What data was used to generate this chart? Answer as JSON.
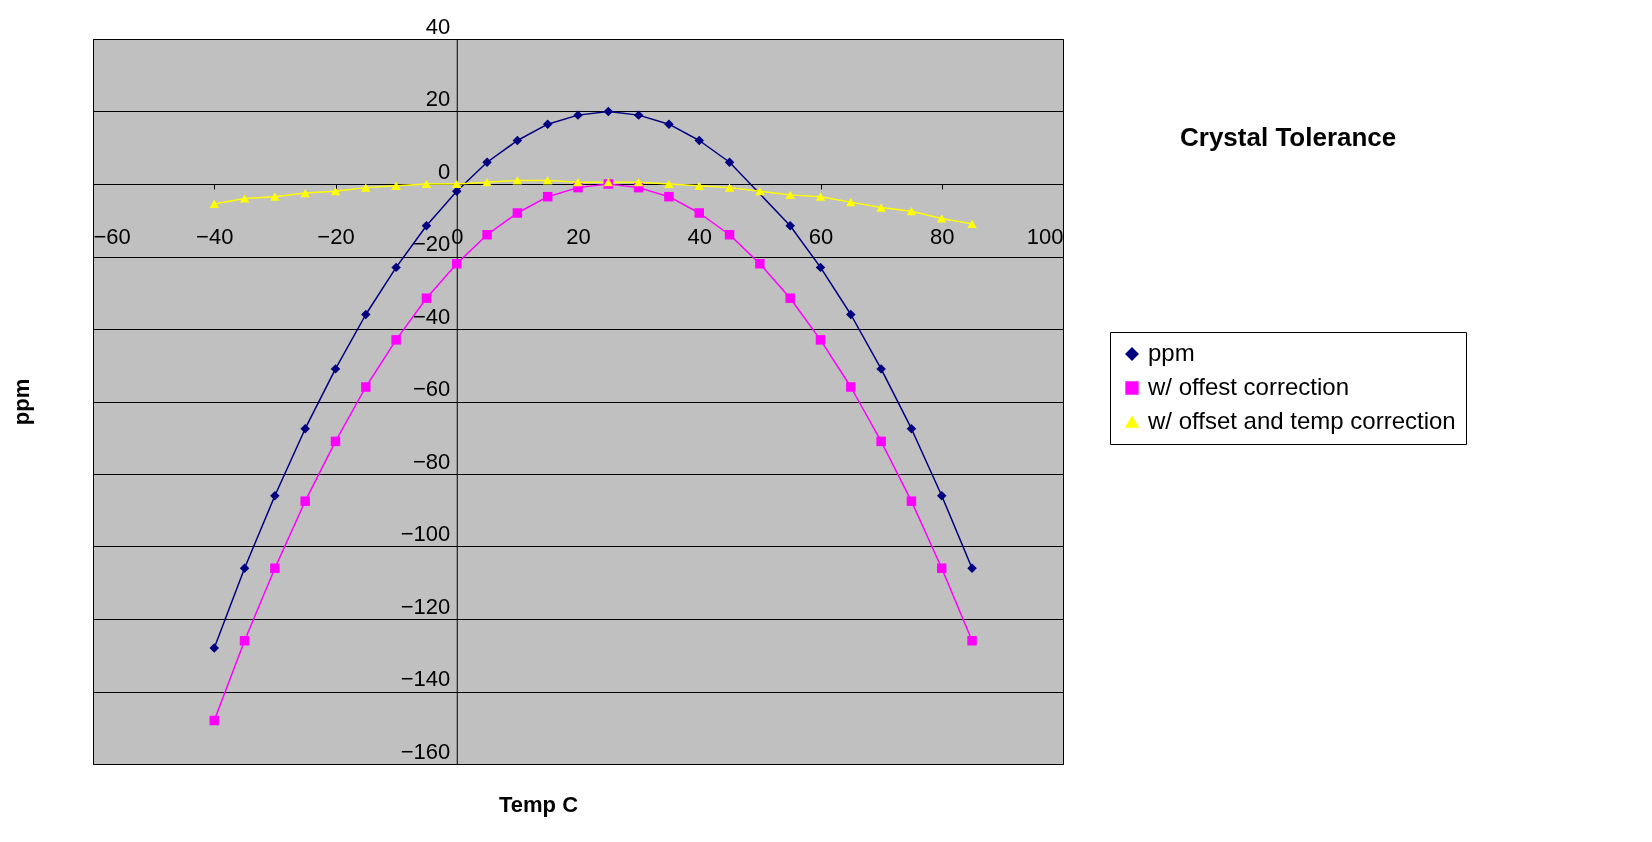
{
  "chart_data": {
    "type": "line",
    "title": "Crystal Tolerance",
    "xlabel": "Temp C",
    "ylabel": "ppm",
    "x": [
      -40,
      -35,
      -30,
      -25,
      -20,
      -15,
      -10,
      -5,
      0,
      5,
      10,
      15,
      20,
      25,
      30,
      35,
      40,
      45,
      50,
      55,
      60,
      65,
      70,
      75,
      80,
      85
    ],
    "series": [
      {
        "name": "ppm",
        "color": "#000080",
        "marker": "diamond",
        "values": [
          -128,
          -106,
          -86,
          -67.5,
          -51,
          -36,
          -23,
          -11.5,
          -2,
          6,
          12,
          16.5,
          19,
          20,
          19,
          16.5,
          12,
          6,
          null,
          -11.5,
          -23,
          -36,
          -51,
          -67.5,
          -86,
          -106
        ]
      },
      {
        "name": "w/ offest correction",
        "color": "#ff00ff",
        "marker": "square",
        "values": [
          -148,
          -126,
          -106,
          -87.5,
          -71,
          -56,
          -43,
          -31.5,
          -22,
          -14,
          -8,
          -3.5,
          -1,
          0,
          -1,
          -3.5,
          -8,
          -14,
          -22,
          -31.5,
          -43,
          -56,
          -71,
          -87.5,
          -106,
          -126
        ]
      },
      {
        "name": "w/ offset and temp correction",
        "color": "#ffff00",
        "marker": "triangle",
        "values": [
          -5.5,
          -4,
          -3.5,
          -2.5,
          -2,
          -1,
          -0.5,
          0,
          0,
          0.5,
          1,
          1,
          0.5,
          0.5,
          0.5,
          0,
          -0.5,
          -1,
          -2,
          -3,
          -3.5,
          -5,
          -6.5,
          -7.5,
          -9.5,
          -11
        ]
      }
    ],
    "xlim": [
      -60,
      100
    ],
    "xticks": [
      -60,
      -40,
      -20,
      0,
      20,
      40,
      60,
      80,
      100
    ],
    "ylim": [
      -160,
      40
    ],
    "yticks": [
      -160,
      -140,
      -120,
      -100,
      -80,
      -60,
      -40,
      -20,
      0,
      20,
      40
    ],
    "grid": "y",
    "legend": "right",
    "line_style": "solid"
  }
}
